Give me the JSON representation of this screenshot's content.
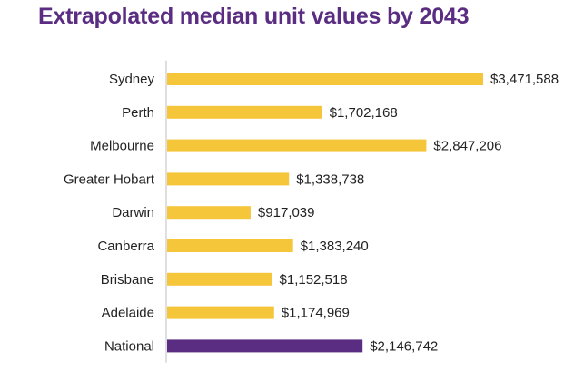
{
  "chart_data": {
    "type": "bar",
    "orientation": "horizontal",
    "title": "Extrapolated median unit values by 2043",
    "categories": [
      "Sydney",
      "Perth",
      "Melbourne",
      "Greater Hobart",
      "Darwin",
      "Canberra",
      "Brisbane",
      "Adelaide",
      "National"
    ],
    "values": [
      3471588,
      1702168,
      2847206,
      1338738,
      917039,
      1383240,
      1152518,
      1174969,
      2146742
    ],
    "value_labels": [
      "$3,471,588",
      "$1,702,168",
      "$2,847,206",
      "$1,338,738",
      "$917,039",
      "$1,383,240",
      "$1,152,518",
      "$1,174,969",
      "$2,146,742"
    ],
    "colors": [
      "#f5c53a",
      "#f5c53a",
      "#f5c53a",
      "#f5c53a",
      "#f5c53a",
      "#f5c53a",
      "#f5c53a",
      "#f5c53a",
      "#5a2d82"
    ],
    "xlabel": "",
    "ylabel": "",
    "xlim": [
      0,
      3471588
    ],
    "grid": false,
    "legend": "none"
  },
  "colors": {
    "title": "#5a2d82",
    "bar": "#f5c53a",
    "highlight_bar": "#5a2d82",
    "axis": "#bfbfbf",
    "text": "#222222"
  }
}
